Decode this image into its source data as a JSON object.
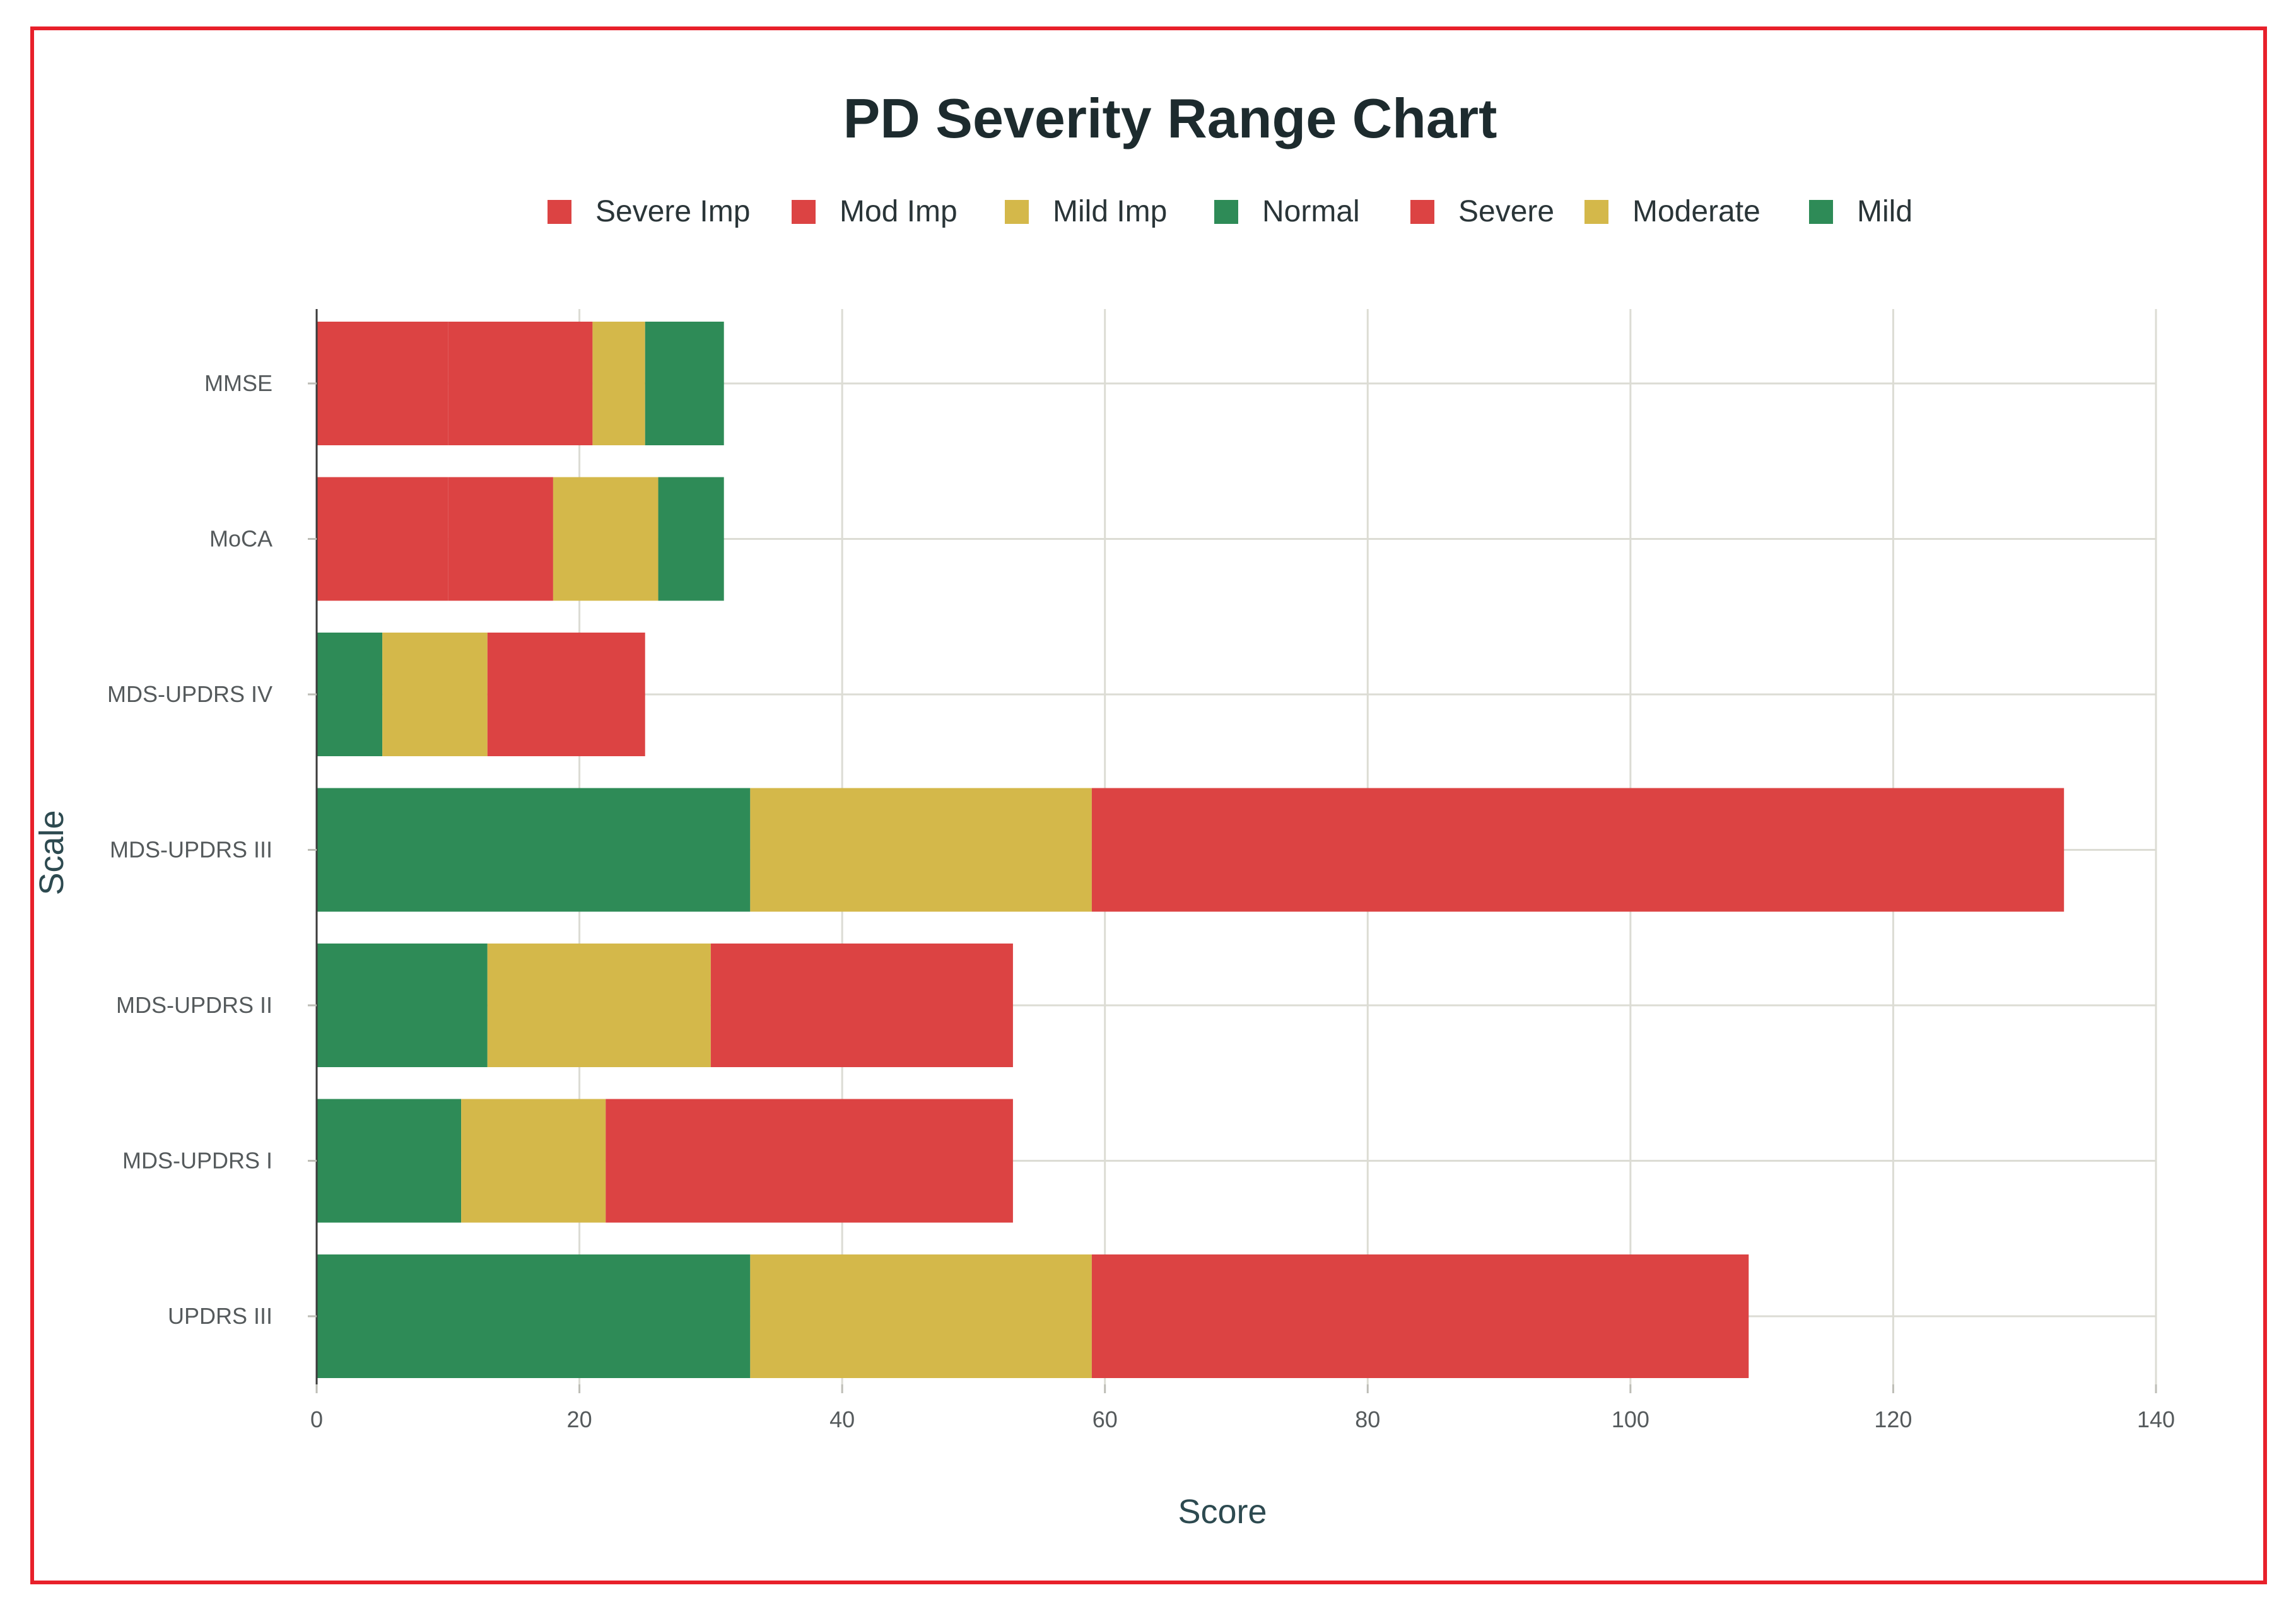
{
  "chart_data": {
    "type": "bar",
    "orientation": "horizontal",
    "stacked": true,
    "title": "PD Severity Range Chart",
    "xlabel": "Score",
    "ylabel": "Scale",
    "xlim": [
      0,
      140
    ],
    "xticks": [
      0,
      20,
      40,
      60,
      80,
      100,
      120,
      140
    ],
    "grid": true,
    "legend_position": "top-center",
    "legend": [
      {
        "name": "Severe Imp",
        "color": "#dc4343"
      },
      {
        "name": "Mod Imp",
        "color": "#dc4343"
      },
      {
        "name": "Mild Imp",
        "color": "#d4b84a"
      },
      {
        "name": "Normal",
        "color": "#2e8b57"
      },
      {
        "name": "Severe",
        "color": "#dc4343"
      },
      {
        "name": "Moderate",
        "color": "#d4b84a"
      },
      {
        "name": "Mild",
        "color": "#2e8b57"
      }
    ],
    "categories": [
      "MMSE",
      "MoCA",
      "MDS-UPDRS IV",
      "MDS-UPDRS III",
      "MDS-UPDRS II",
      "MDS-UPDRS I",
      "UPDRS III"
    ],
    "bars": [
      {
        "category": "MMSE",
        "segments": [
          {
            "series": "Severe Imp",
            "start": 0,
            "end": 10,
            "color": "#dc4343"
          },
          {
            "series": "Mod Imp",
            "start": 10,
            "end": 21,
            "color": "#dc4343"
          },
          {
            "series": "Mild Imp",
            "start": 21,
            "end": 25,
            "color": "#d4b84a"
          },
          {
            "series": "Normal",
            "start": 25,
            "end": 31,
            "color": "#2e8b57"
          }
        ]
      },
      {
        "category": "MoCA",
        "segments": [
          {
            "series": "Severe Imp",
            "start": 0,
            "end": 10,
            "color": "#dc4343"
          },
          {
            "series": "Mod Imp",
            "start": 10,
            "end": 18,
            "color": "#dc4343"
          },
          {
            "series": "Mild Imp",
            "start": 18,
            "end": 26,
            "color": "#d4b84a"
          },
          {
            "series": "Normal",
            "start": 26,
            "end": 31,
            "color": "#2e8b57"
          }
        ]
      },
      {
        "category": "MDS-UPDRS IV",
        "segments": [
          {
            "series": "Mild",
            "start": 0,
            "end": 5,
            "color": "#2e8b57"
          },
          {
            "series": "Moderate",
            "start": 5,
            "end": 13,
            "color": "#d4b84a"
          },
          {
            "series": "Severe",
            "start": 13,
            "end": 25,
            "color": "#dc4343"
          }
        ]
      },
      {
        "category": "MDS-UPDRS III",
        "segments": [
          {
            "series": "Mild",
            "start": 0,
            "end": 33,
            "color": "#2e8b57"
          },
          {
            "series": "Moderate",
            "start": 33,
            "end": 59,
            "color": "#d4b84a"
          },
          {
            "series": "Severe",
            "start": 59,
            "end": 133,
            "color": "#dc4343"
          }
        ]
      },
      {
        "category": "MDS-UPDRS II",
        "segments": [
          {
            "series": "Mild",
            "start": 0,
            "end": 13,
            "color": "#2e8b57"
          },
          {
            "series": "Moderate",
            "start": 13,
            "end": 30,
            "color": "#d4b84a"
          },
          {
            "series": "Severe",
            "start": 30,
            "end": 53,
            "color": "#dc4343"
          }
        ]
      },
      {
        "category": "MDS-UPDRS I",
        "segments": [
          {
            "series": "Mild",
            "start": 0,
            "end": 11,
            "color": "#2e8b57"
          },
          {
            "series": "Moderate",
            "start": 11,
            "end": 22,
            "color": "#d4b84a"
          },
          {
            "series": "Severe",
            "start": 22,
            "end": 53,
            "color": "#dc4343"
          }
        ]
      },
      {
        "category": "UPDRS III",
        "segments": [
          {
            "series": "Mild",
            "start": 0,
            "end": 33,
            "color": "#2e8b57"
          },
          {
            "series": "Moderate",
            "start": 33,
            "end": 59,
            "color": "#d4b84a"
          },
          {
            "series": "Severe",
            "start": 59,
            "end": 109,
            "color": "#dc4343"
          }
        ]
      }
    ]
  },
  "colors": {
    "frame_border": "#e8202a",
    "grid": "#dcdcd4",
    "red": "#dc4343",
    "yellow": "#d4b84a",
    "green": "#2e8b57"
  }
}
